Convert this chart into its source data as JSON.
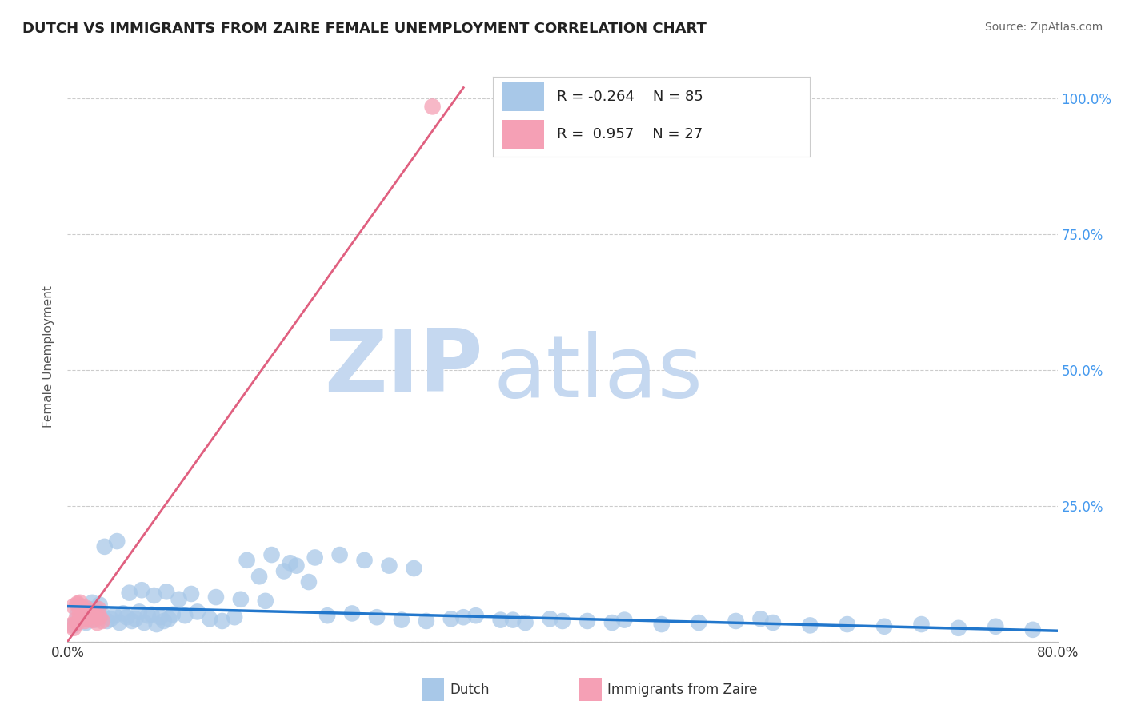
{
  "title": "DUTCH VS IMMIGRANTS FROM ZAIRE FEMALE UNEMPLOYMENT CORRELATION CHART",
  "source": "Source: ZipAtlas.com",
  "ylabel": "Female Unemployment",
  "xlim": [
    0.0,
    0.8
  ],
  "ylim": [
    0.0,
    1.05
  ],
  "legend_dutch_R": "-0.264",
  "legend_dutch_N": "85",
  "legend_zaire_R": "0.957",
  "legend_zaire_N": "27",
  "dutch_color": "#a8c8e8",
  "zaire_color": "#f5a0b5",
  "dutch_line_color": "#2277cc",
  "zaire_line_color": "#e06080",
  "watermark_zip": "ZIP",
  "watermark_atlas": "atlas",
  "watermark_color": "#c5d8f0",
  "background_color": "#ffffff",
  "grid_color": "#cccccc",
  "title_color": "#222222",
  "source_color": "#666666",
  "axis_label_color": "#555555",
  "tick_color_right": "#4499ee",
  "dutch_scatter_x": [
    0.005,
    0.008,
    0.012,
    0.015,
    0.018,
    0.022,
    0.025,
    0.028,
    0.032,
    0.035,
    0.038,
    0.042,
    0.045,
    0.048,
    0.052,
    0.055,
    0.058,
    0.062,
    0.065,
    0.068,
    0.072,
    0.075,
    0.078,
    0.082,
    0.085,
    0.095,
    0.105,
    0.115,
    0.125,
    0.135,
    0.145,
    0.155,
    0.165,
    0.175,
    0.185,
    0.195,
    0.21,
    0.23,
    0.25,
    0.27,
    0.29,
    0.31,
    0.33,
    0.35,
    0.37,
    0.39,
    0.42,
    0.45,
    0.48,
    0.51,
    0.54,
    0.57,
    0.6,
    0.63,
    0.66,
    0.69,
    0.72,
    0.75,
    0.78,
    0.01,
    0.014,
    0.02,
    0.026,
    0.03,
    0.04,
    0.05,
    0.06,
    0.07,
    0.08,
    0.09,
    0.1,
    0.12,
    0.14,
    0.16,
    0.18,
    0.2,
    0.22,
    0.24,
    0.26,
    0.28,
    0.32,
    0.36,
    0.4,
    0.44,
    0.56
  ],
  "dutch_scatter_y": [
    0.03,
    0.05,
    0.045,
    0.035,
    0.06,
    0.04,
    0.055,
    0.05,
    0.038,
    0.042,
    0.048,
    0.035,
    0.052,
    0.045,
    0.038,
    0.042,
    0.055,
    0.035,
    0.048,
    0.05,
    0.032,
    0.045,
    0.038,
    0.042,
    0.05,
    0.048,
    0.055,
    0.042,
    0.038,
    0.045,
    0.15,
    0.12,
    0.16,
    0.13,
    0.14,
    0.11,
    0.048,
    0.052,
    0.045,
    0.04,
    0.038,
    0.042,
    0.048,
    0.04,
    0.035,
    0.042,
    0.038,
    0.04,
    0.032,
    0.035,
    0.038,
    0.035,
    0.03,
    0.032,
    0.028,
    0.032,
    0.025,
    0.028,
    0.022,
    0.065,
    0.058,
    0.072,
    0.068,
    0.175,
    0.185,
    0.09,
    0.095,
    0.085,
    0.092,
    0.078,
    0.088,
    0.082,
    0.078,
    0.075,
    0.145,
    0.155,
    0.16,
    0.15,
    0.14,
    0.135,
    0.045,
    0.04,
    0.038,
    0.035,
    0.042
  ],
  "zaire_scatter_x": [
    0.003,
    0.005,
    0.007,
    0.008,
    0.01,
    0.012,
    0.014,
    0.015,
    0.016,
    0.018,
    0.02,
    0.022,
    0.024,
    0.025,
    0.026,
    0.028,
    0.005,
    0.008,
    0.012,
    0.015,
    0.018,
    0.01,
    0.02,
    0.015,
    0.008,
    0.012,
    0.295
  ],
  "zaire_scatter_y": [
    0.03,
    0.025,
    0.04,
    0.035,
    0.05,
    0.045,
    0.038,
    0.055,
    0.042,
    0.048,
    0.04,
    0.052,
    0.035,
    0.06,
    0.045,
    0.038,
    0.065,
    0.07,
    0.058,
    0.062,
    0.055,
    0.072,
    0.048,
    0.042,
    0.068,
    0.06,
    0.985
  ],
  "dutch_trend_x": [
    0.0,
    0.8
  ],
  "dutch_trend_y": [
    0.065,
    0.02
  ],
  "zaire_trend_x": [
    0.0,
    0.32
  ],
  "zaire_trend_y": [
    0.0,
    1.02
  ]
}
